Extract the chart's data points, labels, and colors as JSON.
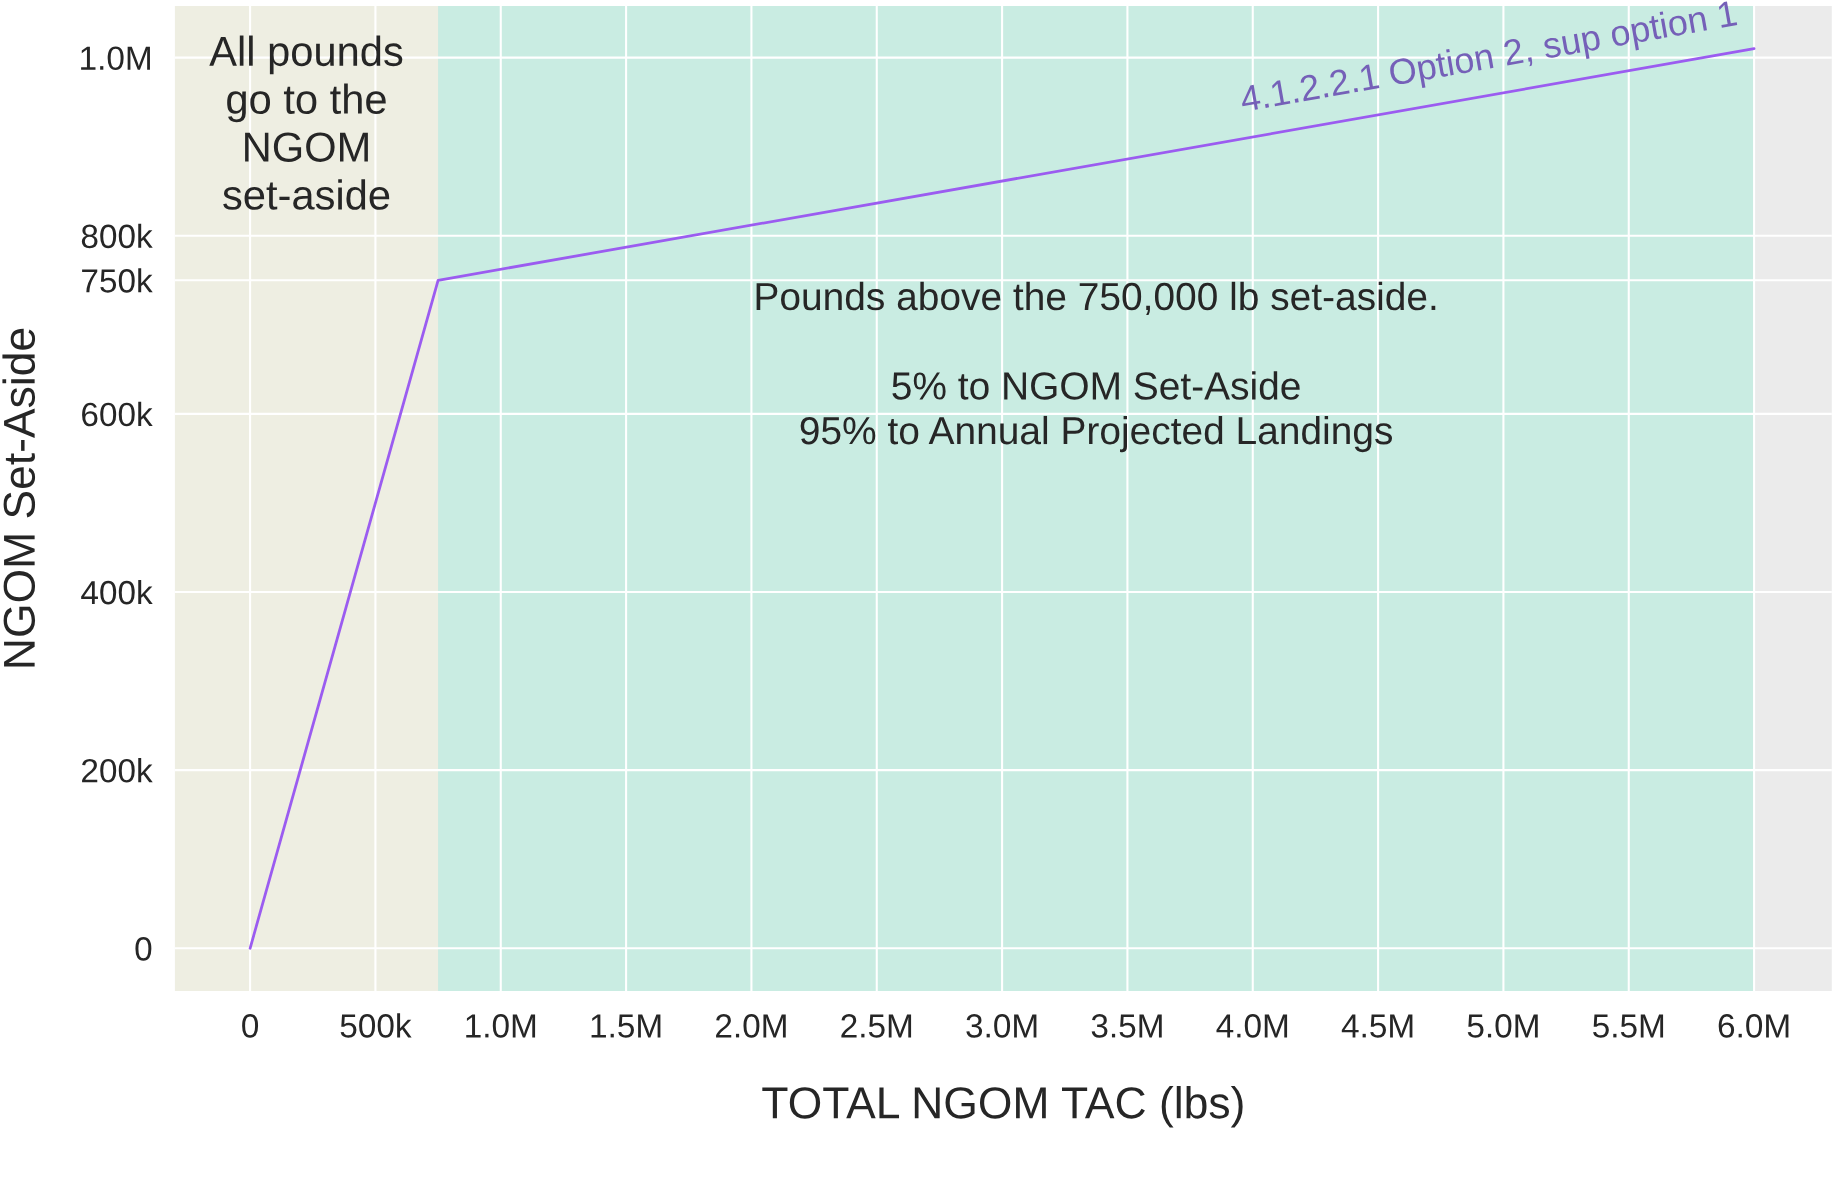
{
  "chart_data": {
    "type": "line",
    "xlabel": "TOTAL NGOM TAC (lbs)",
    "ylabel": "NGOM Set-Aside",
    "x": [
      0,
      750000,
      6000000
    ],
    "series": [
      {
        "name": "4.1.2.2.1 Option 2, sup option 1",
        "color": "#9b5cf0",
        "values": [
          0,
          750000,
          1010000
        ]
      }
    ],
    "xlim": [
      -300000,
      6310000
    ],
    "ylim": [
      -48000,
      1058000
    ],
    "xticks": [
      0,
      {
        "value": 500000,
        "label": "500k"
      },
      {
        "value": 1000000,
        "label": "1.0M"
      },
      {
        "value": 1500000,
        "label": "1.5M"
      },
      {
        "value": 2000000,
        "label": "2.0M"
      },
      {
        "value": 2500000,
        "label": "2.5M"
      },
      {
        "value": 3000000,
        "label": "3.0M"
      },
      {
        "value": 3500000,
        "label": "3.5M"
      },
      {
        "value": 4000000,
        "label": "4.0M"
      },
      {
        "value": 4500000,
        "label": "4.5M"
      },
      {
        "value": 5000000,
        "label": "5.0M"
      },
      {
        "value": 5500000,
        "label": "5.5M"
      },
      {
        "value": 6000000,
        "label": "6.0M"
      }
    ],
    "yticks": [
      0,
      {
        "value": 200000,
        "label": "200k"
      },
      {
        "value": 400000,
        "label": "400k"
      },
      {
        "value": 600000,
        "label": "600k"
      },
      {
        "value": 750000,
        "label": "750k"
      },
      {
        "value": 800000,
        "label": "800k"
      },
      {
        "value": 1000000,
        "label": "1.0M"
      }
    ],
    "bands": [
      {
        "axis": "x",
        "from": -300000,
        "to": 750000,
        "color": "#eeeee2",
        "label": "All pounds\ngo to the\nNGOM\nset-aside"
      },
      {
        "axis": "x",
        "from": 750000,
        "to": 6000000,
        "color": "#c9ece2",
        "label": "Pounds above the 750,000 lb set-aside.\n\n5% to NGOM Set-Aside\n95% to Annual Projected Landings"
      }
    ],
    "grid": true,
    "marker": "none",
    "line_style": "solid"
  }
}
